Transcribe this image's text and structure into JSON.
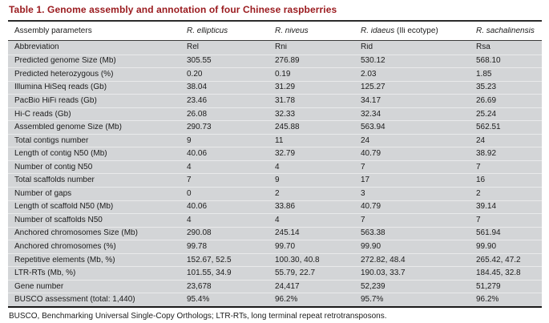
{
  "title": "Table 1. Genome assembly and annotation of four Chinese raspberries",
  "colors": {
    "title_red": "#9b1c20",
    "table_body_gray": "#d3d5d7",
    "rule_dark": "#1a1a1a"
  },
  "table": {
    "columns": [
      {
        "em": "",
        "text": "Assembly parameters"
      },
      {
        "em": "R. ellipticus",
        "text": ""
      },
      {
        "em": "R. niveus",
        "text": ""
      },
      {
        "em": "R. idaeus",
        "text": " (Ili ecotype)"
      },
      {
        "em": "R. sachalinensis",
        "text": ""
      }
    ],
    "rows": [
      {
        "label": "Abbreviation",
        "values": [
          "Rel",
          "Rni",
          "Rid",
          "Rsa"
        ]
      },
      {
        "label": "Predicted genome Size (Mb)",
        "values": [
          "305.55",
          "276.89",
          "530.12",
          "568.10"
        ]
      },
      {
        "label": "Predicted heterozygous (%)",
        "values": [
          "0.20",
          "0.19",
          "2.03",
          "1.85"
        ]
      },
      {
        "label": "Illumina HiSeq reads (Gb)",
        "values": [
          "38.04",
          "31.29",
          "125.27",
          "35.23"
        ]
      },
      {
        "label": "PacBio HiFi reads (Gb)",
        "values": [
          "23.46",
          "31.78",
          "34.17",
          "26.69"
        ]
      },
      {
        "label": "Hi-C reads (Gb)",
        "values": [
          "26.08",
          "32.33",
          "32.34",
          "25.24"
        ]
      },
      {
        "label": "Assembled genome Size (Mb)",
        "values": [
          "290.73",
          "245.88",
          "563.94",
          "562.51"
        ]
      },
      {
        "label": "Total contigs number",
        "values": [
          "9",
          "11",
          "24",
          "24"
        ]
      },
      {
        "label": "Length of contig N50 (Mb)",
        "values": [
          "40.06",
          "32.79",
          "40.79",
          "38.92"
        ]
      },
      {
        "label": "Number of contig N50",
        "values": [
          "4",
          "4",
          "7",
          "7"
        ]
      },
      {
        "label": "Total scaffolds number",
        "values": [
          "7",
          "9",
          "17",
          "16"
        ]
      },
      {
        "label": "Number of gaps",
        "values": [
          "0",
          "2",
          "3",
          "2"
        ]
      },
      {
        "label": "Length of scaffold N50 (Mb)",
        "values": [
          "40.06",
          "33.86",
          "40.79",
          "39.14"
        ]
      },
      {
        "label": "Number of scaffolds N50",
        "values": [
          "4",
          "4",
          "7",
          "7"
        ]
      },
      {
        "label": "Anchored chromosomes Size (Mb)",
        "values": [
          "290.08",
          "245.14",
          "563.38",
          "561.94"
        ]
      },
      {
        "label": "Anchored chromosomes (%)",
        "values": [
          "99.78",
          "99.70",
          "99.90",
          "99.90"
        ]
      },
      {
        "label": "Repetitive elements (Mb, %)",
        "values": [
          "152.67, 52.5",
          "100.30, 40.8",
          "272.82, 48.4",
          "265.42, 47.2"
        ]
      },
      {
        "label": "LTR-RTs (Mb, %)",
        "values": [
          "101.55, 34.9",
          "55.79, 22.7",
          "190.03, 33.7",
          "184.45, 32.8"
        ]
      },
      {
        "label": "Gene number",
        "values": [
          "23,678",
          "24,417",
          "52,239",
          "51,279"
        ]
      },
      {
        "label": "BUSCO assessment (total: 1,440)",
        "values": [
          "95.4%",
          "96.2%",
          "95.7%",
          "96.2%"
        ]
      }
    ]
  },
  "chart_data": {
    "type": "table",
    "title": "Table 1. Genome assembly and annotation of four Chinese raspberries",
    "columns": [
      "Assembly parameters",
      "R. ellipticus",
      "R. niveus",
      "R. idaeus (Ili ecotype)",
      "R. sachalinensis"
    ],
    "rows": [
      [
        "Abbreviation",
        "Rel",
        "Rni",
        "Rid",
        "Rsa"
      ],
      [
        "Predicted genome Size (Mb)",
        "305.55",
        "276.89",
        "530.12",
        "568.10"
      ],
      [
        "Predicted heterozygous (%)",
        "0.20",
        "0.19",
        "2.03",
        "1.85"
      ],
      [
        "Illumina HiSeq reads (Gb)",
        "38.04",
        "31.29",
        "125.27",
        "35.23"
      ],
      [
        "PacBio HiFi reads (Gb)",
        "23.46",
        "31.78",
        "34.17",
        "26.69"
      ],
      [
        "Hi-C reads (Gb)",
        "26.08",
        "32.33",
        "32.34",
        "25.24"
      ],
      [
        "Assembled genome Size (Mb)",
        "290.73",
        "245.88",
        "563.94",
        "562.51"
      ],
      [
        "Total contigs number",
        "9",
        "11",
        "24",
        "24"
      ],
      [
        "Length of contig N50 (Mb)",
        "40.06",
        "32.79",
        "40.79",
        "38.92"
      ],
      [
        "Number of contig N50",
        "4",
        "4",
        "7",
        "7"
      ],
      [
        "Total scaffolds number",
        "7",
        "9",
        "17",
        "16"
      ],
      [
        "Number of gaps",
        "0",
        "2",
        "3",
        "2"
      ],
      [
        "Length of scaffold N50 (Mb)",
        "40.06",
        "33.86",
        "40.79",
        "39.14"
      ],
      [
        "Number of scaffolds N50",
        "4",
        "4",
        "7",
        "7"
      ],
      [
        "Anchored chromosomes Size (Mb)",
        "290.08",
        "245.14",
        "563.38",
        "561.94"
      ],
      [
        "Anchored chromosomes (%)",
        "99.78",
        "99.70",
        "99.90",
        "99.90"
      ],
      [
        "Repetitive elements (Mb, %)",
        "152.67, 52.5",
        "100.30, 40.8",
        "272.82, 48.4",
        "265.42, 47.2"
      ],
      [
        "LTR-RTs (Mb, %)",
        "101.55, 34.9",
        "55.79, 22.7",
        "190.03, 33.7",
        "184.45, 32.8"
      ],
      [
        "Gene number",
        "23,678",
        "24,417",
        "52,239",
        "51,279"
      ],
      [
        "BUSCO assessment (total: 1,440)",
        "95.4%",
        "96.2%",
        "95.7%",
        "96.2%"
      ]
    ]
  },
  "footnote": "BUSCO, Benchmarking Universal Single-Copy Orthologs; LTR-RTs, long terminal repeat retrotransposons."
}
